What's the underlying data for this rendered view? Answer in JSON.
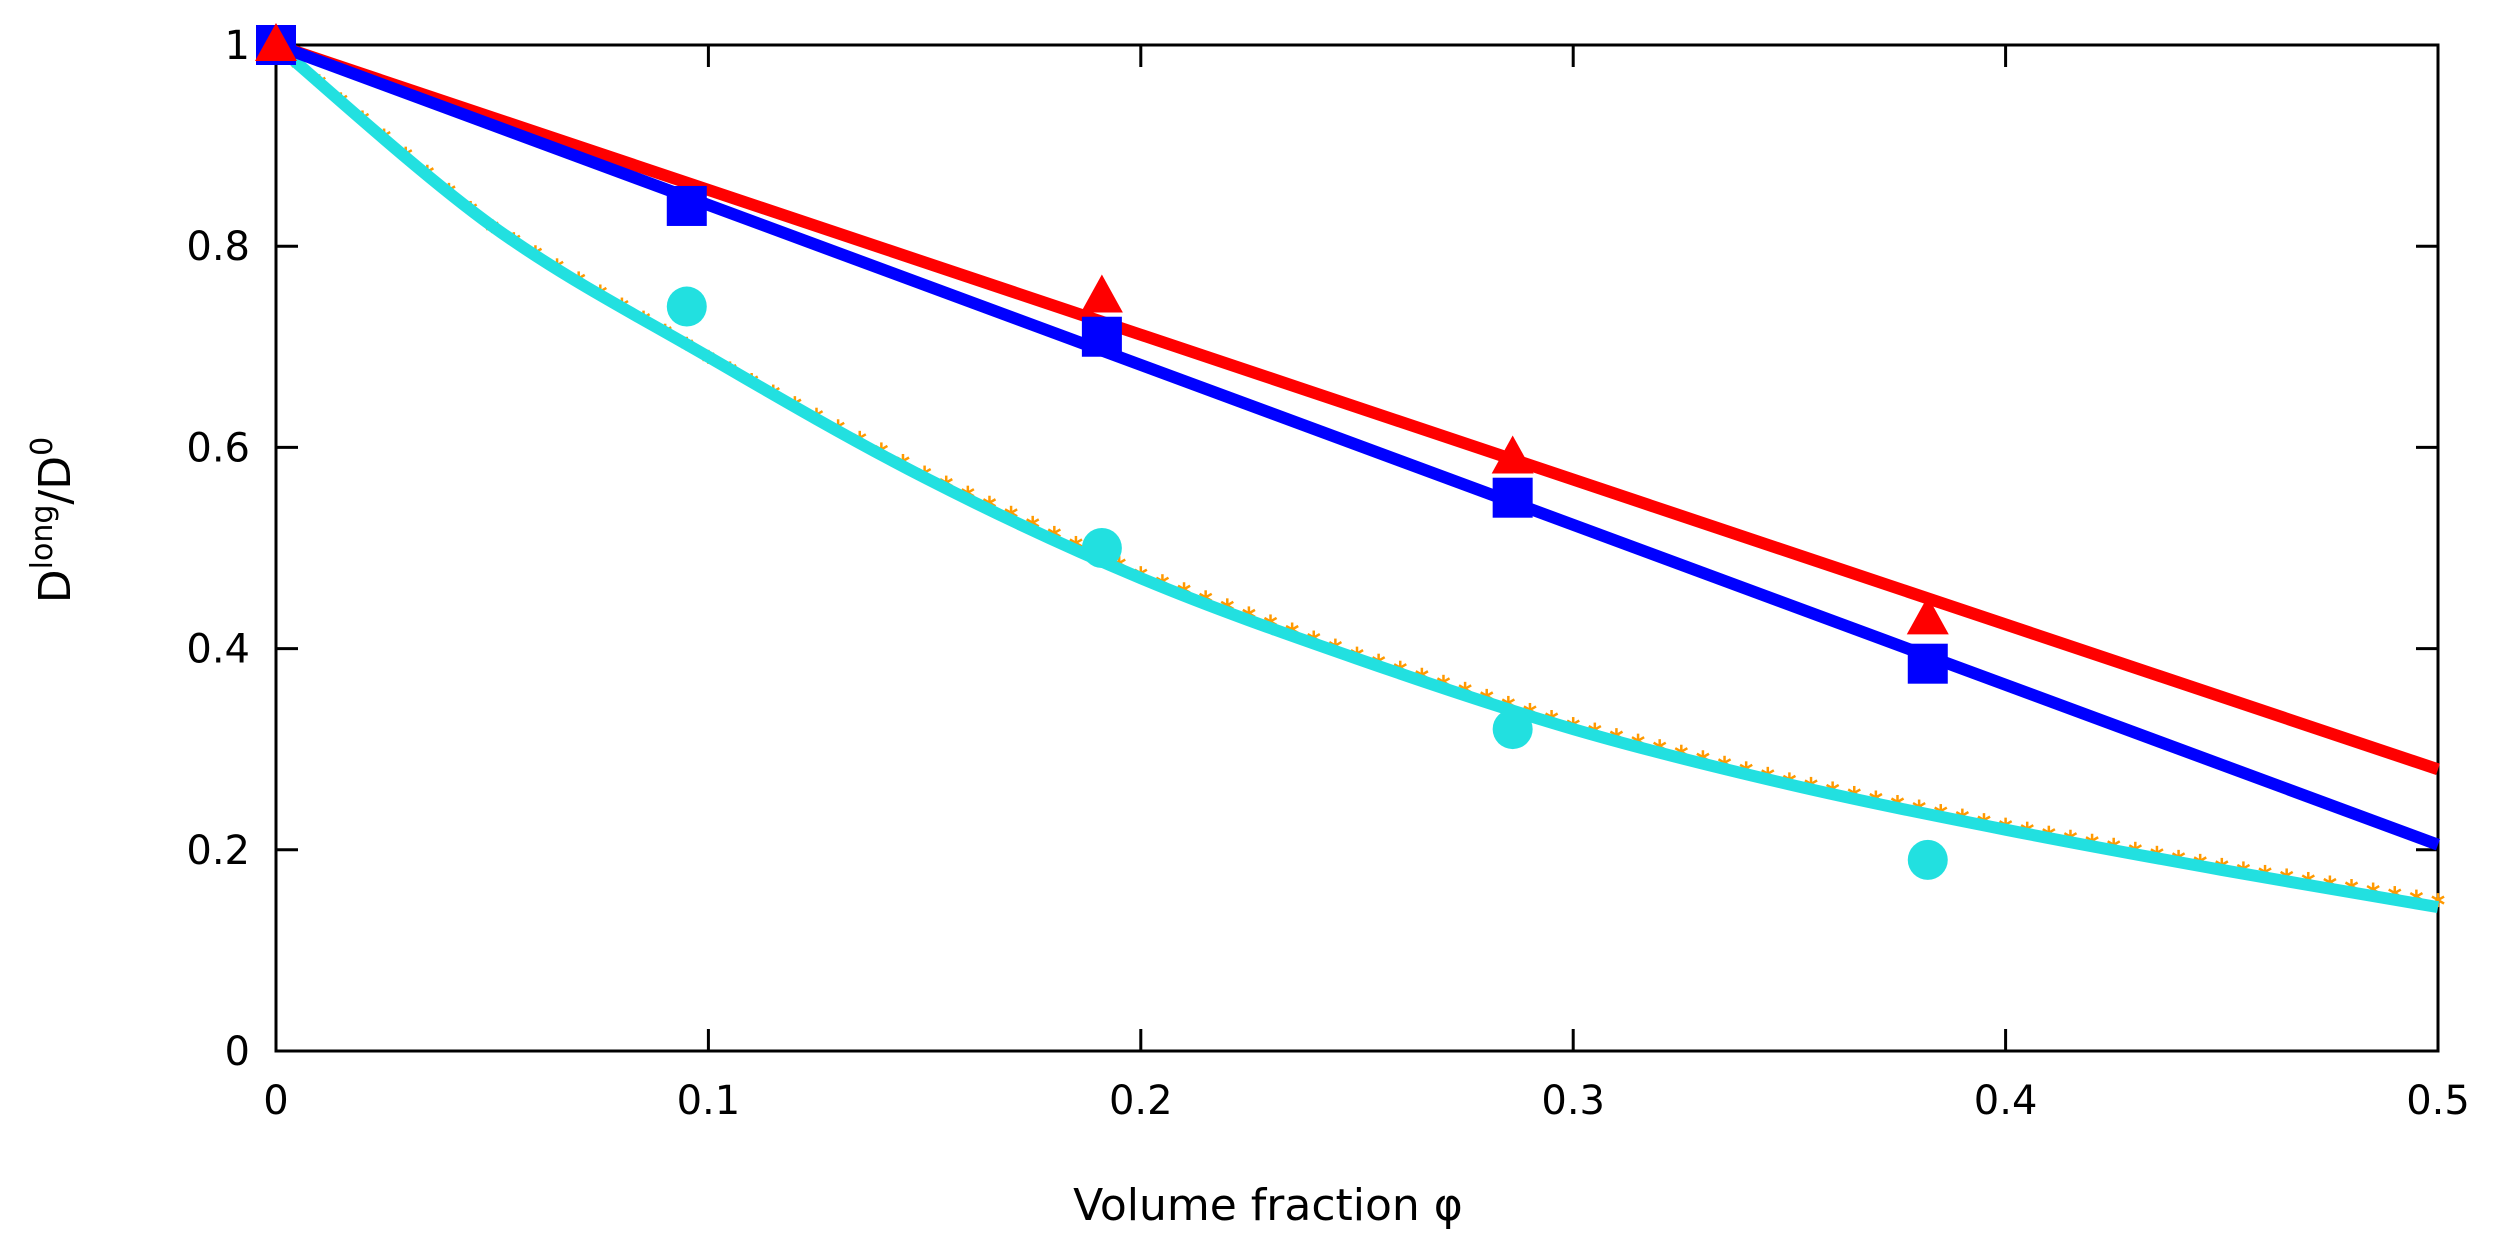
{
  "chart_data": {
    "type": "line",
    "title": "",
    "xlabel": "Volume fraction φ",
    "ylabel": {
      "base": "D",
      "sup": "long",
      "slash": "/D",
      "sup2": "0"
    },
    "xlim": [
      0,
      0.5
    ],
    "ylim": [
      0,
      1
    ],
    "xticks": [
      "0",
      "0.1",
      "0.2",
      "0.3",
      "0.4",
      "0.5"
    ],
    "yticks": [
      "0",
      "0.2",
      "0.4",
      "0.6",
      "0.8",
      "1"
    ],
    "grid": false,
    "legend": "none",
    "series": [
      {
        "name": "red-line",
        "kind": "line",
        "color": "#ff0000",
        "x": [
          0,
          0.5
        ],
        "y": [
          1.0,
          0.28
        ]
      },
      {
        "name": "blue-line",
        "kind": "line",
        "color": "#0000ff",
        "x": [
          0,
          0.5
        ],
        "y": [
          1.0,
          0.205
        ]
      },
      {
        "name": "cyan-curve",
        "kind": "curve",
        "color": "#22e0e0",
        "x": [
          0,
          0.05,
          0.1,
          0.15,
          0.2,
          0.25,
          0.3,
          0.35,
          0.4,
          0.45,
          0.5
        ],
        "y": [
          1.0,
          0.82,
          0.69,
          0.57,
          0.47,
          0.39,
          0.32,
          0.265,
          0.22,
          0.18,
          0.143
        ]
      },
      {
        "name": "orange-stars",
        "kind": "stars",
        "color": "#ff9900",
        "x": [
          0,
          0.05,
          0.1,
          0.15,
          0.2,
          0.25,
          0.3,
          0.35,
          0.4,
          0.45,
          0.5
        ],
        "y": [
          1.0,
          0.82,
          0.69,
          0.575,
          0.475,
          0.395,
          0.325,
          0.27,
          0.225,
          0.185,
          0.15
        ]
      },
      {
        "name": "red-triangles",
        "kind": "triangle",
        "color": "#ff0000",
        "x": [
          0,
          0.191,
          0.286,
          0.382
        ],
        "y": [
          1.0,
          0.75,
          0.59,
          0.43
        ]
      },
      {
        "name": "blue-squares",
        "kind": "square",
        "color": "#0000ff",
        "x": [
          0,
          0.095,
          0.191,
          0.286,
          0.382
        ],
        "y": [
          1.0,
          0.84,
          0.71,
          0.55,
          0.385
        ]
      },
      {
        "name": "cyan-circles",
        "kind": "circle",
        "color": "#22e0e0",
        "x": [
          0,
          0.095,
          0.191,
          0.286,
          0.382
        ],
        "y": [
          1.0,
          0.74,
          0.5,
          0.32,
          0.19
        ]
      }
    ]
  }
}
